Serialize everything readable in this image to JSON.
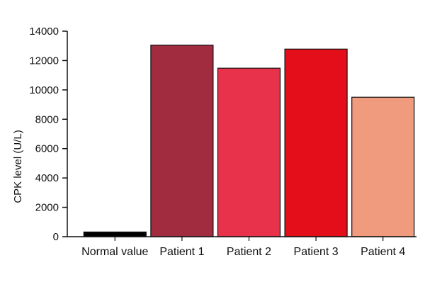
{
  "chart_data": {
    "type": "bar",
    "title": "",
    "xlabel": "",
    "ylabel": "CPK level (U/L)",
    "ylim": [
      0,
      14000
    ],
    "yticks": [
      0,
      2000,
      4000,
      6000,
      8000,
      10000,
      12000,
      14000
    ],
    "grid": false,
    "legend": "none",
    "categories": [
      "Normal value",
      "Patient 1",
      "Patient 2",
      "Patient 3",
      "Patient 4"
    ],
    "values": [
      320,
      13050,
      11480,
      12780,
      9500
    ],
    "colors": [
      "#000000",
      "#a12c3f",
      "#e8314a",
      "#e30e1a",
      "#f09a7e"
    ]
  }
}
